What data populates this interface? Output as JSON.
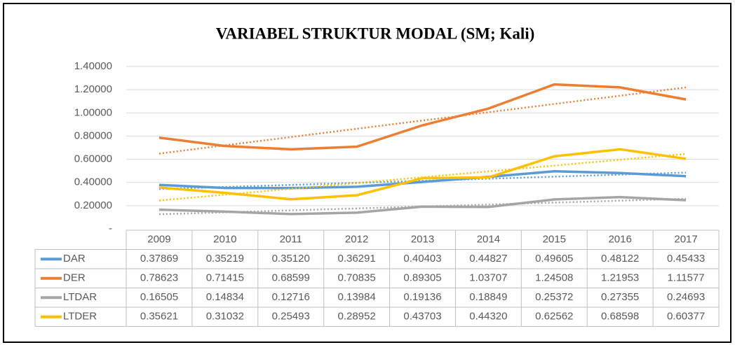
{
  "chart_data": {
    "type": "line",
    "title": "VARIABEL STRUKTUR MODAL (SM; Kali)",
    "categories": [
      "2009",
      "2010",
      "2011",
      "2012",
      "2013",
      "2014",
      "2015",
      "2016",
      "2017"
    ],
    "ylim": [
      0,
      1.4
    ],
    "yticks": [
      {
        "value": 0,
        "label": "-"
      },
      {
        "value": 0.2,
        "label": "0.20000"
      },
      {
        "value": 0.4,
        "label": "0.40000"
      },
      {
        "value": 0.6,
        "label": "0.60000"
      },
      {
        "value": 0.8,
        "label": "0.80000"
      },
      {
        "value": 1.0,
        "label": "1.00000"
      },
      {
        "value": 1.2,
        "label": "1.20000"
      },
      {
        "value": 1.4,
        "label": "1.40000"
      }
    ],
    "grid": true,
    "trendline": "linear",
    "data_table": true,
    "series": [
      {
        "name": "DAR",
        "color": "#5b9bd5",
        "values": [
          0.37869,
          0.35219,
          0.3512,
          0.36291,
          0.40403,
          0.44827,
          0.49605,
          0.48122,
          0.45433
        ],
        "value_labels": [
          "0.37869",
          "0.35219",
          "0.35120",
          "0.36291",
          "0.40403",
          "0.44827",
          "0.49605",
          "0.48122",
          "0.45433"
        ]
      },
      {
        "name": "DER",
        "color": "#ed7d31",
        "values": [
          0.78623,
          0.71415,
          0.68599,
          0.70835,
          0.89305,
          1.03707,
          1.24508,
          1.21953,
          1.11577
        ],
        "value_labels": [
          "0.78623",
          "0.71415",
          "0.68599",
          "0.70835",
          "0.89305",
          "1.03707",
          "1.24508",
          "1.21953",
          "1.11577"
        ]
      },
      {
        "name": "LTDAR",
        "color": "#a5a5a5",
        "values": [
          0.16505,
          0.14834,
          0.12716,
          0.13984,
          0.19136,
          0.18849,
          0.25372,
          0.27355,
          0.24693
        ],
        "value_labels": [
          "0.16505",
          "0.14834",
          "0.12716",
          "0.13984",
          "0.19136",
          "0.18849",
          "0.25372",
          "0.27355",
          "0.24693"
        ]
      },
      {
        "name": "LTDER",
        "color": "#ffc000",
        "values": [
          0.35621,
          0.31032,
          0.25493,
          0.28952,
          0.43703,
          0.4432,
          0.62562,
          0.68598,
          0.60377
        ],
        "value_labels": [
          "0.35621",
          "0.31032",
          "0.25493",
          "0.28952",
          "0.43703",
          "0.44320",
          "0.62562",
          "0.68598",
          "0.60377"
        ]
      }
    ]
  }
}
